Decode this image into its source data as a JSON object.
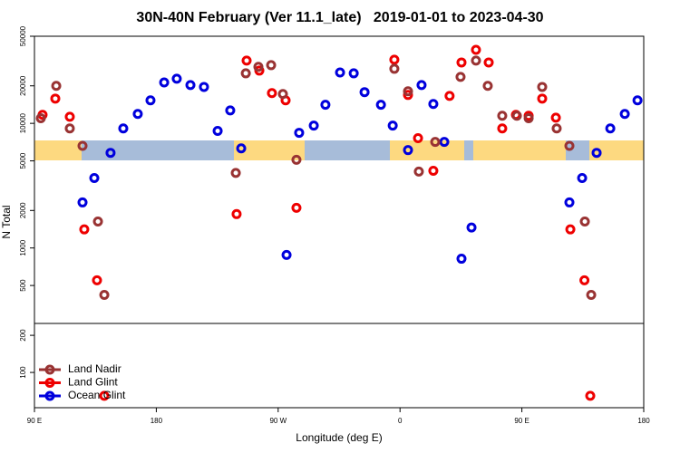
{
  "chart_data": [
    {
      "type": "scatter",
      "title": "30N-40N February (Ver 11.1_late)   2019-01-01 to 2023-04-30",
      "ylabel": "N Total",
      "log_y": true,
      "ylim": [
        248,
        50000
      ],
      "yticks": [
        500,
        1000,
        2000,
        5000,
        10000,
        20000,
        50000
      ],
      "series": [
        {
          "color": "#0000dd",
          "x": [
            125.5,
            134.2,
            146.2,
            155.6,
            166.3,
            175.7,
            185.8,
            195.1,
            205.2,
            215.2,
            225.3,
            234.6,
            242.7,
            276.2,
            285.5,
            296.3,
            304.9,
            315.7,
            325.8,
            333.8,
            345.9,
            354.6,
            365.9,
            375.9,
            384.6,
            392.7,
            405.4,
            412.8,
            485.1,
            494.5,
            505.2,
            515.3,
            526.0,
            535.4
          ],
          "values": [
            2320,
            3640,
            5800,
            9100,
            11900,
            15300,
            21300,
            22800,
            20300,
            19600,
            8700,
            12700,
            6300,
            880,
            8400,
            9600,
            14100,
            25600,
            25200,
            17800,
            14100,
            9600,
            6100,
            20300,
            14300,
            7100,
            820,
            1460,
            2320,
            3640,
            5800,
            9100,
            11900,
            15300
          ]
        },
        {
          "color": "#ee0000",
          "x": [
            96.0,
            105.4,
            116.1,
            126.8,
            136.2,
            239.3,
            246.7,
            256.1,
            265.4,
            275.5,
            283.5,
            355.8,
            365.9,
            373.3,
            384.6,
            396.6,
            405.4,
            416.1,
            425.5,
            435.5,
            445.6,
            455.0,
            465.0,
            475.1,
            485.8,
            496.2
          ],
          "values": [
            11700,
            15800,
            11300,
            1410,
            550,
            1870,
            31900,
            26500,
            17500,
            15300,
            2100,
            32400,
            16900,
            7600,
            4160,
            16600,
            30800,
            38900,
            30800,
            9100,
            11700,
            11500,
            15800,
            11100,
            1410,
            550
          ]
        },
        {
          "color": "#993333",
          "x": [
            94.7,
            106.1,
            116.1,
            125.5,
            136.9,
            141.6,
            238.7,
            246.1,
            255.4,
            264.8,
            273.5,
            283.5,
            355.8,
            365.9,
            373.9,
            386.0,
            404.7,
            416.1,
            424.8,
            435.5,
            446.3,
            455.0,
            465.0,
            475.7,
            485.1,
            496.5,
            501.2
          ],
          "values": [
            11000,
            20000,
            9100,
            6600,
            1630,
            420,
            4000,
            25200,
            28400,
            29300,
            17200,
            5100,
            27400,
            18100,
            4100,
            7100,
            23600,
            31900,
            20000,
            11500,
            11500,
            11000,
            19600,
            9100,
            6600,
            1630,
            420
          ]
        }
      ]
    },
    {
      "type": "scatter",
      "xlabel": "Longitude (deg E)",
      "ylim": [
        5,
        232
      ],
      "yticks": [
        100,
        200
      ],
      "xlim": [
        90,
        540
      ],
      "xticks": [
        {
          "value": 90,
          "label": "90 E"
        },
        {
          "value": 180,
          "label": "180"
        },
        {
          "value": 270,
          "label": "90 W"
        },
        {
          "value": 360,
          "label": "0"
        },
        {
          "value": 450,
          "label": "90 E"
        },
        {
          "value": 540,
          "label": "180"
        }
      ],
      "legend": "bottom-left",
      "series": [
        {
          "name": "Land Nadir",
          "color": "#993333",
          "x": [],
          "values": []
        },
        {
          "name": "Land Glint",
          "color": "#ee0000",
          "x": [
            141.6,
            500.5
          ],
          "values": [
            37,
            37
          ]
        },
        {
          "name": "Ocean Glint",
          "color": "#0000dd",
          "x": [],
          "values": []
        }
      ]
    }
  ]
}
